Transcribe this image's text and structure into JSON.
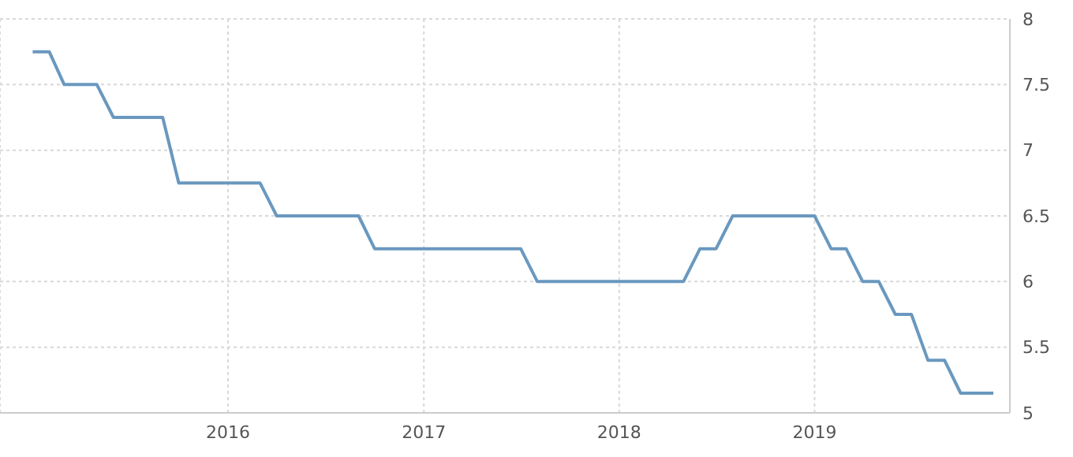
{
  "chart_data": {
    "type": "line",
    "x": [
      "2015-01",
      "2015-02",
      "2015-03",
      "2015-04",
      "2015-05",
      "2015-06",
      "2015-07",
      "2015-08",
      "2015-09",
      "2015-10",
      "2015-11",
      "2015-12",
      "2016-01",
      "2016-02",
      "2016-03",
      "2016-04",
      "2016-05",
      "2016-06",
      "2016-07",
      "2016-08",
      "2016-09",
      "2016-10",
      "2016-11",
      "2016-12",
      "2017-01",
      "2017-02",
      "2017-03",
      "2017-04",
      "2017-05",
      "2017-06",
      "2017-07",
      "2017-08",
      "2017-09",
      "2017-10",
      "2017-11",
      "2017-12",
      "2018-01",
      "2018-02",
      "2018-03",
      "2018-04",
      "2018-05",
      "2018-06",
      "2018-07",
      "2018-08",
      "2018-09",
      "2018-10",
      "2018-11",
      "2018-12",
      "2019-01",
      "2019-02",
      "2019-03",
      "2019-04",
      "2019-05",
      "2019-06",
      "2019-07",
      "2019-08",
      "2019-09",
      "2019-10",
      "2019-11",
      "2019-12"
    ],
    "series": [
      {
        "color": "#6a98bf",
        "values": [
          7.75,
          7.75,
          7.5,
          7.5,
          7.5,
          7.25,
          7.25,
          7.25,
          7.25,
          6.75,
          6.75,
          6.75,
          6.75,
          6.75,
          6.75,
          6.5,
          6.5,
          6.5,
          6.5,
          6.5,
          6.5,
          6.25,
          6.25,
          6.25,
          6.25,
          6.25,
          6.25,
          6.25,
          6.25,
          6.25,
          6.25,
          6,
          6,
          6,
          6,
          6,
          6,
          6,
          6,
          6,
          6,
          6.25,
          6.25,
          6.5,
          6.5,
          6.5,
          6.5,
          6.5,
          6.5,
          6.25,
          6.25,
          6,
          6,
          5.75,
          5.75,
          5.4,
          5.4,
          5.15,
          5.15,
          5.15
        ]
      }
    ],
    "xlim": [
      "2014-11",
      "2020-01"
    ],
    "xticks": [
      "2016",
      "2017",
      "2018",
      "2019"
    ],
    "ylim": [
      5,
      8
    ],
    "yticks": [
      5,
      5.5,
      6,
      6.5,
      7,
      7.5,
      8
    ],
    "grid": true,
    "marker": "none",
    "line_style": "solid"
  }
}
